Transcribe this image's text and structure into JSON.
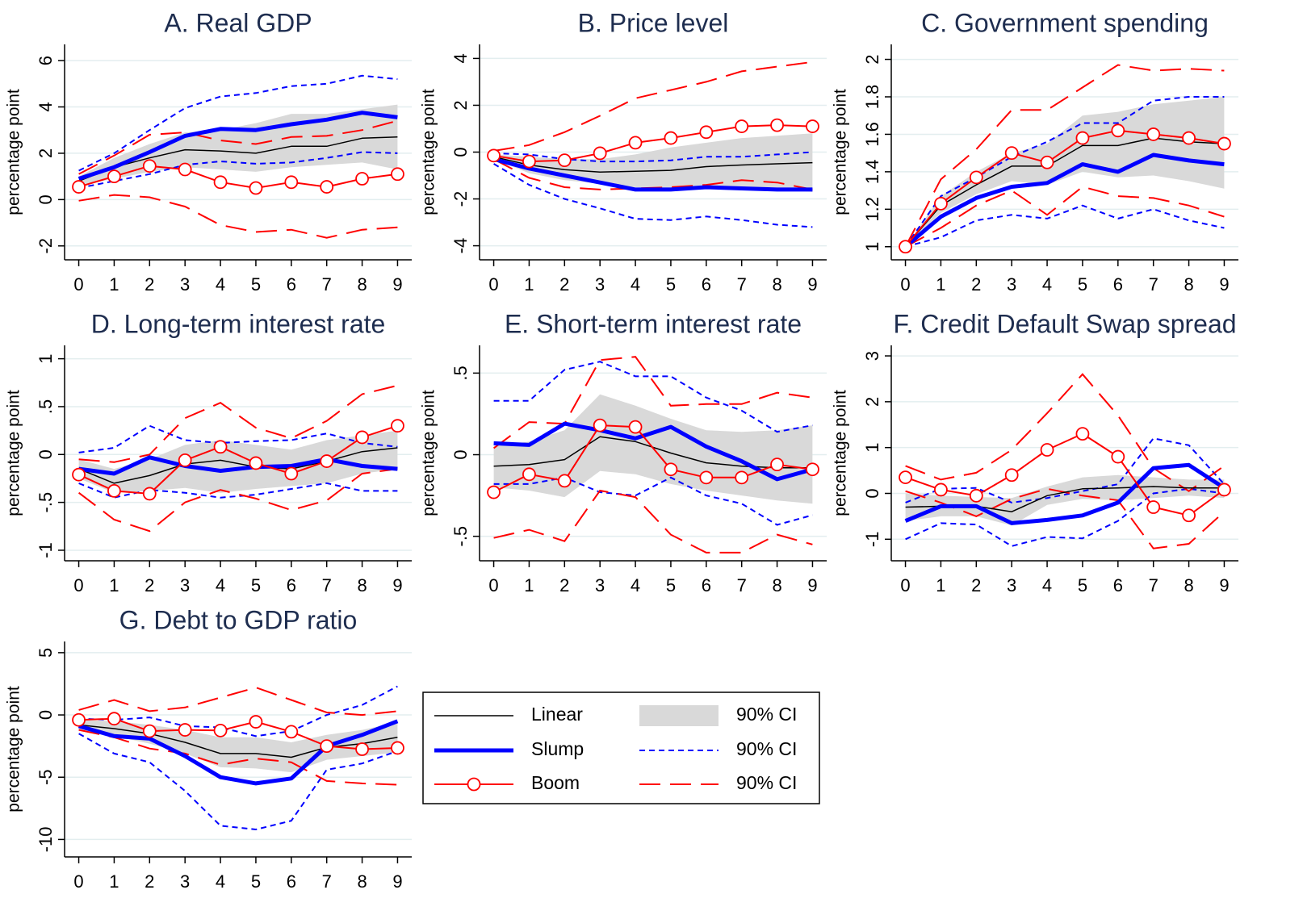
{
  "legend": [
    {
      "name": "Linear",
      "color": "#000000",
      "style": "solid"
    },
    {
      "name": "Slump",
      "color": "#0000ff",
      "style": "thick"
    },
    {
      "name": "Boom",
      "color": "#ff0000",
      "style": "marker"
    },
    {
      "name": "90% CI",
      "color": "#d9d9d9",
      "style": "band"
    },
    {
      "name": "90% CI",
      "color": "#0000ff",
      "style": "dash"
    },
    {
      "name": "90% CI",
      "color": "#ff0000",
      "style": "longdash"
    }
  ],
  "chart_data": [
    {
      "type": "line",
      "title": "A. Real GDP",
      "y_label": "percentage point",
      "x": [
        0,
        1,
        2,
        3,
        4,
        5,
        6,
        7,
        8,
        9
      ],
      "xlim": [
        -0.4,
        9.4
      ],
      "xticks": [
        0,
        1,
        2,
        3,
        4,
        5,
        6,
        7,
        8,
        9
      ],
      "ylim": [
        -2.6,
        6.7
      ],
      "yticks": [
        -2,
        0,
        2,
        4,
        6
      ],
      "grid": true,
      "series": [
        {
          "values": [
            0.8,
            1.4,
            1.8,
            2.15,
            2.1,
            2.0,
            2.3,
            2.3,
            2.65,
            2.7
          ]
        },
        {
          "values": [
            0.9,
            1.4,
            2.05,
            2.75,
            3.05,
            3.0,
            3.25,
            3.45,
            3.75,
            3.55
          ]
        },
        {
          "values": [
            0.55,
            1.0,
            1.45,
            1.3,
            0.75,
            0.5,
            0.75,
            0.55,
            0.9,
            1.1
          ]
        },
        {
          "lower": [
            0.6,
            0.9,
            1.2,
            1.4,
            1.3,
            1.2,
            1.4,
            1.5,
            1.6,
            1.3
          ],
          "upper": [
            1.0,
            1.8,
            2.4,
            2.9,
            3.0,
            3.3,
            3.7,
            3.7,
            3.9,
            4.1
          ]
        },
        {
          "lower": [
            0.5,
            0.8,
            1.1,
            1.5,
            1.65,
            1.55,
            1.6,
            1.8,
            2.05,
            2.0
          ],
          "upper": [
            1.25,
            2.0,
            3.0,
            3.95,
            4.45,
            4.6,
            4.9,
            5.0,
            5.35,
            5.2
          ]
        },
        {
          "lower": [
            -0.05,
            0.2,
            0.1,
            -0.3,
            -1.1,
            -1.4,
            -1.3,
            -1.65,
            -1.3,
            -1.2
          ],
          "upper": [
            1.1,
            1.9,
            2.8,
            2.9,
            2.55,
            2.4,
            2.7,
            2.75,
            3.0,
            3.4
          ]
        }
      ]
    },
    {
      "type": "line",
      "title": "B. Price level",
      "y_label": "percentage point",
      "x": [
        0,
        1,
        2,
        3,
        4,
        5,
        6,
        7,
        8,
        9
      ],
      "xlim": [
        -0.4,
        9.4
      ],
      "xticks": [
        0,
        1,
        2,
        3,
        4,
        5,
        6,
        7,
        8,
        9
      ],
      "ylim": [
        -4.6,
        4.6
      ],
      "yticks": [
        -4,
        -2,
        0,
        2,
        4
      ],
      "grid": true,
      "series": [
        {
          "values": [
            -0.2,
            -0.55,
            -0.75,
            -0.85,
            -0.82,
            -0.78,
            -0.62,
            -0.55,
            -0.5,
            -0.45
          ]
        },
        {
          "values": [
            -0.3,
            -0.7,
            -1.0,
            -1.3,
            -1.6,
            -1.6,
            -1.5,
            -1.55,
            -1.6,
            -1.6
          ]
        },
        {
          "values": [
            -0.15,
            -0.4,
            -0.35,
            -0.05,
            0.4,
            0.6,
            0.85,
            1.1,
            1.15,
            1.1
          ]
        },
        {
          "lower": [
            -0.3,
            -0.9,
            -1.2,
            -1.35,
            -1.5,
            -1.6,
            -1.5,
            -1.5,
            -1.6,
            -1.7
          ],
          "upper": [
            -0.1,
            -0.2,
            -0.3,
            -0.3,
            -0.1,
            0.2,
            0.4,
            0.6,
            0.7,
            0.8
          ]
        },
        {
          "lower": [
            -0.5,
            -1.4,
            -2.0,
            -2.4,
            -2.85,
            -2.9,
            -2.75,
            -2.9,
            -3.1,
            -3.2
          ],
          "upper": [
            -0.05,
            -0.1,
            -0.3,
            -0.4,
            -0.4,
            -0.35,
            -0.2,
            -0.2,
            -0.1,
            0.0
          ]
        },
        {
          "lower": [
            -0.3,
            -1.1,
            -1.5,
            -1.6,
            -1.55,
            -1.5,
            -1.4,
            -1.2,
            -1.3,
            -1.6
          ],
          "upper": [
            0.05,
            0.3,
            0.85,
            1.55,
            2.3,
            2.65,
            3.0,
            3.45,
            3.65,
            3.85
          ]
        }
      ]
    },
    {
      "type": "line",
      "title": "C. Government spending",
      "y_label": "percentage point",
      "x": [
        0,
        1,
        2,
        3,
        4,
        5,
        6,
        7,
        8,
        9
      ],
      "xlim": [
        -0.4,
        9.4
      ],
      "xticks": [
        0,
        1,
        2,
        3,
        4,
        5,
        6,
        7,
        8,
        9
      ],
      "ylim": [
        0.93,
        2.08
      ],
      "yticks": [
        1,
        1.2,
        1.4,
        1.6,
        1.8,
        2
      ],
      "grid": true,
      "series": [
        {
          "values": [
            1.0,
            1.22,
            1.33,
            1.43,
            1.43,
            1.54,
            1.54,
            1.58,
            1.56,
            1.55
          ]
        },
        {
          "values": [
            1.0,
            1.16,
            1.26,
            1.32,
            1.34,
            1.44,
            1.4,
            1.49,
            1.46,
            1.44
          ]
        },
        {
          "values": [
            1.0,
            1.23,
            1.37,
            1.5,
            1.45,
            1.58,
            1.62,
            1.6,
            1.58,
            1.55
          ]
        },
        {
          "lower": [
            1.0,
            1.18,
            1.28,
            1.35,
            1.33,
            1.4,
            1.37,
            1.38,
            1.35,
            1.31
          ],
          "upper": [
            1.0,
            1.27,
            1.4,
            1.5,
            1.55,
            1.7,
            1.72,
            1.76,
            1.78,
            1.8
          ]
        },
        {
          "lower": [
            1.0,
            1.05,
            1.14,
            1.17,
            1.15,
            1.22,
            1.15,
            1.2,
            1.14,
            1.1
          ],
          "upper": [
            1.0,
            1.27,
            1.37,
            1.48,
            1.56,
            1.66,
            1.66,
            1.78,
            1.8,
            1.8
          ]
        },
        {
          "lower": [
            1.0,
            1.1,
            1.22,
            1.3,
            1.17,
            1.32,
            1.27,
            1.26,
            1.22,
            1.16
          ],
          "upper": [
            1.0,
            1.36,
            1.52,
            1.73,
            1.73,
            1.85,
            1.97,
            1.94,
            1.95,
            1.94
          ]
        }
      ]
    },
    {
      "type": "line",
      "title": "D. Long-term interest rate",
      "y_label": "percentage point",
      "x": [
        0,
        1,
        2,
        3,
        4,
        5,
        6,
        7,
        8,
        9
      ],
      "xlim": [
        -0.4,
        9.4
      ],
      "xticks": [
        0,
        1,
        2,
        3,
        4,
        5,
        6,
        7,
        8,
        9
      ],
      "ylim": [
        -1.11,
        1.14
      ],
      "yticks": [
        -1,
        {
          "value": -0.5,
          "label": "-.5"
        },
        0,
        {
          "value": 0.5,
          "label": ".5"
        },
        1
      ],
      "grid": true,
      "series": [
        {
          "values": [
            -0.15,
            -0.3,
            -0.22,
            -0.1,
            -0.06,
            -0.13,
            -0.15,
            -0.07,
            0.03,
            0.07
          ]
        },
        {
          "values": [
            -0.15,
            -0.2,
            -0.03,
            -0.12,
            -0.17,
            -0.13,
            -0.12,
            -0.05,
            -0.12,
            -0.15
          ]
        },
        {
          "values": [
            -0.21,
            -0.38,
            -0.41,
            -0.06,
            0.08,
            -0.09,
            -0.2,
            -0.07,
            0.18,
            0.3
          ]
        },
        {
          "lower": [
            -0.25,
            -0.4,
            -0.38,
            -0.35,
            -0.4,
            -0.36,
            -0.33,
            -0.3,
            -0.2,
            -0.15
          ],
          "upper": [
            -0.05,
            -0.15,
            -0.05,
            0.1,
            0.15,
            0.1,
            0.05,
            0.15,
            0.2,
            0.25
          ]
        },
        {
          "lower": [
            -0.3,
            -0.45,
            -0.37,
            -0.4,
            -0.45,
            -0.42,
            -0.36,
            -0.3,
            -0.38,
            -0.38
          ],
          "upper": [
            0.02,
            0.07,
            0.3,
            0.15,
            0.12,
            0.14,
            0.15,
            0.22,
            0.12,
            0.08
          ]
        },
        {
          "lower": [
            -0.4,
            -0.68,
            -0.8,
            -0.5,
            -0.37,
            -0.46,
            -0.58,
            -0.48,
            -0.2,
            -0.15
          ],
          "upper": [
            -0.05,
            -0.08,
            0.0,
            0.38,
            0.54,
            0.28,
            0.17,
            0.35,
            0.63,
            0.72
          ]
        }
      ]
    },
    {
      "type": "line",
      "title": "E. Short-term interest rate",
      "y_label": "percentage point",
      "x": [
        0,
        1,
        2,
        3,
        4,
        5,
        6,
        7,
        8,
        9
      ],
      "xlim": [
        -0.4,
        9.4
      ],
      "xticks": [
        0,
        1,
        2,
        3,
        4,
        5,
        6,
        7,
        8,
        9
      ],
      "ylim": [
        -0.65,
        0.67
      ],
      "yticks": [
        {
          "value": -0.5,
          "label": "-.5"
        },
        0,
        {
          "value": 0.5,
          "label": ".5"
        }
      ],
      "grid": true,
      "series": [
        {
          "values": [
            -0.07,
            -0.06,
            -0.03,
            0.11,
            0.08,
            0.01,
            -0.05,
            -0.07,
            -0.08,
            -0.08
          ]
        },
        {
          "values": [
            0.07,
            0.06,
            0.19,
            0.15,
            0.1,
            0.17,
            0.05,
            -0.04,
            -0.15,
            -0.09
          ]
        },
        {
          "values": [
            -0.23,
            -0.12,
            -0.16,
            0.18,
            0.17,
            -0.09,
            -0.14,
            -0.14,
            -0.06,
            -0.09
          ]
        },
        {
          "lower": [
            -0.2,
            -0.22,
            -0.26,
            -0.1,
            -0.12,
            -0.18,
            -0.22,
            -0.25,
            -0.28,
            -0.3
          ],
          "upper": [
            0.05,
            0.08,
            0.15,
            0.37,
            0.3,
            0.22,
            0.15,
            0.14,
            0.15,
            0.18
          ]
        },
        {
          "lower": [
            -0.18,
            -0.18,
            -0.14,
            -0.23,
            -0.25,
            -0.14,
            -0.25,
            -0.3,
            -0.43,
            -0.37
          ],
          "upper": [
            0.33,
            0.33,
            0.52,
            0.57,
            0.48,
            0.48,
            0.35,
            0.27,
            0.14,
            0.18
          ]
        },
        {
          "lower": [
            -0.51,
            -0.46,
            -0.53,
            -0.22,
            -0.26,
            -0.49,
            -0.6,
            -0.6,
            -0.49,
            -0.55
          ],
          "upper": [
            0.04,
            0.2,
            0.19,
            0.58,
            0.6,
            0.3,
            0.31,
            0.31,
            0.38,
            0.35
          ]
        }
      ]
    },
    {
      "type": "line",
      "title": "F. Credit Default Swap spread",
      "y_label": "percentage point",
      "x": [
        0,
        1,
        2,
        3,
        4,
        5,
        6,
        7,
        8,
        9
      ],
      "xlim": [
        -0.4,
        9.4
      ],
      "xticks": [
        0,
        1,
        2,
        3,
        4,
        5,
        6,
        7,
        8,
        9
      ],
      "ylim": [
        -1.47,
        3.23
      ],
      "yticks": [
        -1,
        0,
        1,
        2,
        3
      ],
      "grid": true,
      "series": [
        {
          "values": [
            -0.3,
            -0.28,
            -0.28,
            -0.4,
            -0.05,
            0.1,
            0.12,
            0.15,
            0.12,
            0.12
          ]
        },
        {
          "values": [
            -0.6,
            -0.28,
            -0.28,
            -0.65,
            -0.58,
            -0.48,
            -0.2,
            0.55,
            0.62,
            0.12
          ]
        },
        {
          "values": [
            0.35,
            0.08,
            -0.05,
            0.4,
            0.95,
            1.3,
            0.8,
            -0.3,
            -0.48,
            0.08
          ]
        },
        {
          "lower": [
            -0.6,
            -0.5,
            -0.5,
            -0.7,
            -0.25,
            -0.12,
            -0.15,
            -0.1,
            -0.05,
            -0.1
          ],
          "upper": [
            0.0,
            -0.05,
            -0.08,
            -0.1,
            0.15,
            0.35,
            0.4,
            0.35,
            0.3,
            0.3
          ]
        },
        {
          "lower": [
            -1.0,
            -0.65,
            -0.68,
            -1.15,
            -0.95,
            -0.98,
            -0.6,
            0.0,
            0.1,
            0.0
          ],
          "upper": [
            -0.2,
            0.1,
            0.12,
            -0.2,
            -0.1,
            0.05,
            0.2,
            1.2,
            1.05,
            0.2
          ]
        },
        {
          "lower": [
            0.05,
            -0.2,
            -0.5,
            -0.12,
            0.1,
            -0.05,
            -0.15,
            -1.2,
            -1.1,
            -0.4
          ],
          "upper": [
            0.6,
            0.3,
            0.45,
            0.95,
            1.75,
            2.6,
            1.7,
            0.55,
            0.05,
            0.6
          ]
        }
      ]
    },
    {
      "type": "line",
      "title": "G. Debt to GDP ratio",
      "y_label": "percentage point",
      "x": [
        0,
        1,
        2,
        3,
        4,
        5,
        6,
        7,
        8,
        9
      ],
      "xlim": [
        -0.4,
        9.4
      ],
      "xticks": [
        0,
        1,
        2,
        3,
        4,
        5,
        6,
        7,
        8,
        9
      ],
      "ylim": [
        -11.4,
        5.9
      ],
      "yticks": [
        -10,
        -5,
        0,
        5
      ],
      "grid": true,
      "series": [
        {
          "values": [
            -0.8,
            -1.1,
            -1.5,
            -2.2,
            -3.1,
            -3.1,
            -3.4,
            -2.6,
            -2.3,
            -1.8
          ]
        },
        {
          "values": [
            -0.9,
            -1.7,
            -1.9,
            -3.3,
            -5.0,
            -5.5,
            -5.1,
            -2.5,
            -1.6,
            -0.5
          ]
        },
        {
          "values": [
            -0.4,
            -0.3,
            -1.3,
            -1.2,
            -1.25,
            -0.55,
            -1.35,
            -2.5,
            -2.75,
            -2.65
          ]
        },
        {
          "lower": [
            -1.2,
            -1.7,
            -2.3,
            -3.1,
            -4.2,
            -4.3,
            -4.6,
            -3.6,
            -3.3,
            -3.0
          ],
          "upper": [
            -0.4,
            -0.5,
            -0.8,
            -1.2,
            -1.8,
            -1.8,
            -2.2,
            -1.6,
            -1.2,
            -0.6
          ]
        },
        {
          "lower": [
            -1.5,
            -3.1,
            -3.8,
            -6.1,
            -8.9,
            -9.2,
            -8.5,
            -4.4,
            -3.9,
            -2.9
          ],
          "upper": [
            -0.3,
            -0.4,
            -0.2,
            -0.9,
            -1.0,
            -1.7,
            -1.3,
            0.0,
            0.8,
            2.3
          ]
        },
        {
          "lower": [
            -1.2,
            -1.8,
            -2.7,
            -3.1,
            -4.0,
            -3.5,
            -3.8,
            -5.3,
            -5.5,
            -5.6
          ],
          "upper": [
            0.4,
            1.2,
            0.3,
            0.6,
            1.4,
            2.2,
            1.2,
            0.2,
            0.0,
            0.3
          ]
        }
      ]
    }
  ]
}
